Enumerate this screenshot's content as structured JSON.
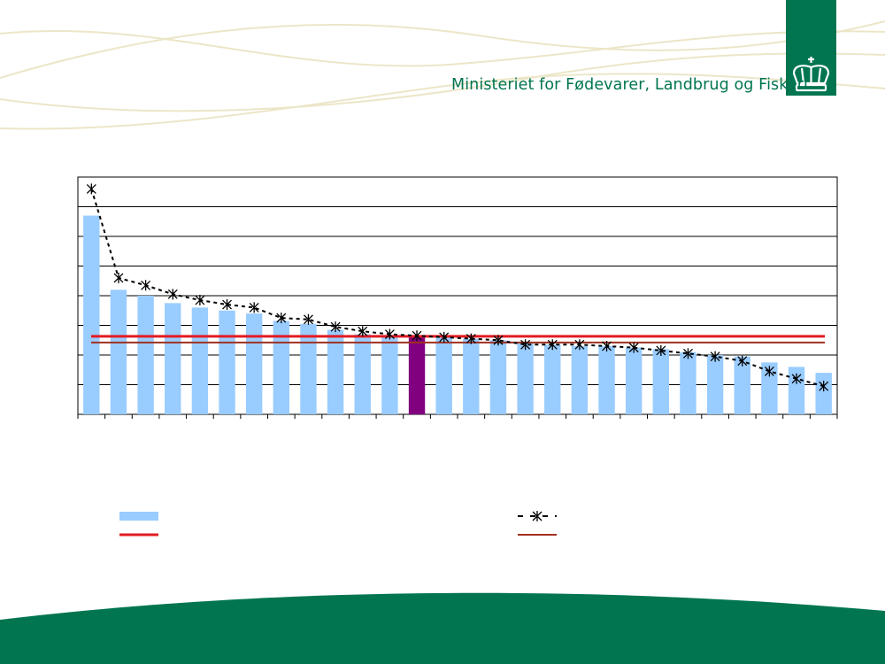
{
  "header": {
    "ministry": "Ministeriet for Fødevarer, Landbrug og Fiskeri",
    "logo": "crown-icon",
    "brand_color": "#007550"
  },
  "chart_data": {
    "type": "bar",
    "title": "",
    "xlabel": "",
    "ylabel": "",
    "ylim": [
      0,
      8
    ],
    "grid": true,
    "category_count": 28,
    "highlight_index": 12,
    "bar_color": "#99ccff",
    "highlight_color": "#800080",
    "series": [
      {
        "type": "bar",
        "values": [
          6.7,
          4.2,
          4.0,
          3.75,
          3.6,
          3.5,
          3.4,
          3.15,
          3.05,
          2.85,
          2.7,
          2.65,
          2.65,
          2.6,
          2.55,
          2.5,
          2.4,
          2.35,
          2.3,
          2.3,
          2.25,
          2.2,
          2.1,
          2.0,
          1.95,
          1.75,
          1.6,
          1.4
        ]
      },
      {
        "type": "line",
        "style": "dashed-star",
        "color": "#000000",
        "values": [
          7.6,
          4.6,
          4.35,
          4.05,
          3.85,
          3.7,
          3.6,
          3.25,
          3.2,
          2.95,
          2.8,
          2.7,
          2.65,
          2.6,
          2.55,
          2.5,
          2.35,
          2.35,
          2.35,
          2.3,
          2.25,
          2.15,
          2.05,
          1.95,
          1.8,
          1.45,
          1.2,
          0.95
        ]
      },
      {
        "type": "hline",
        "color": "#e31b23",
        "value": 2.63
      },
      {
        "type": "hline",
        "color": "#a0301f",
        "value": 2.42
      }
    ],
    "legend": [
      {
        "symbol": "bar",
        "color": "#99ccff",
        "label": ""
      },
      {
        "symbol": "dashed-star",
        "color": "#000000",
        "label": ""
      },
      {
        "symbol": "line",
        "color": "#e31b23",
        "label": ""
      },
      {
        "symbol": "line",
        "color": "#a0301f",
        "label": ""
      }
    ],
    "legend_position": "bottom"
  }
}
